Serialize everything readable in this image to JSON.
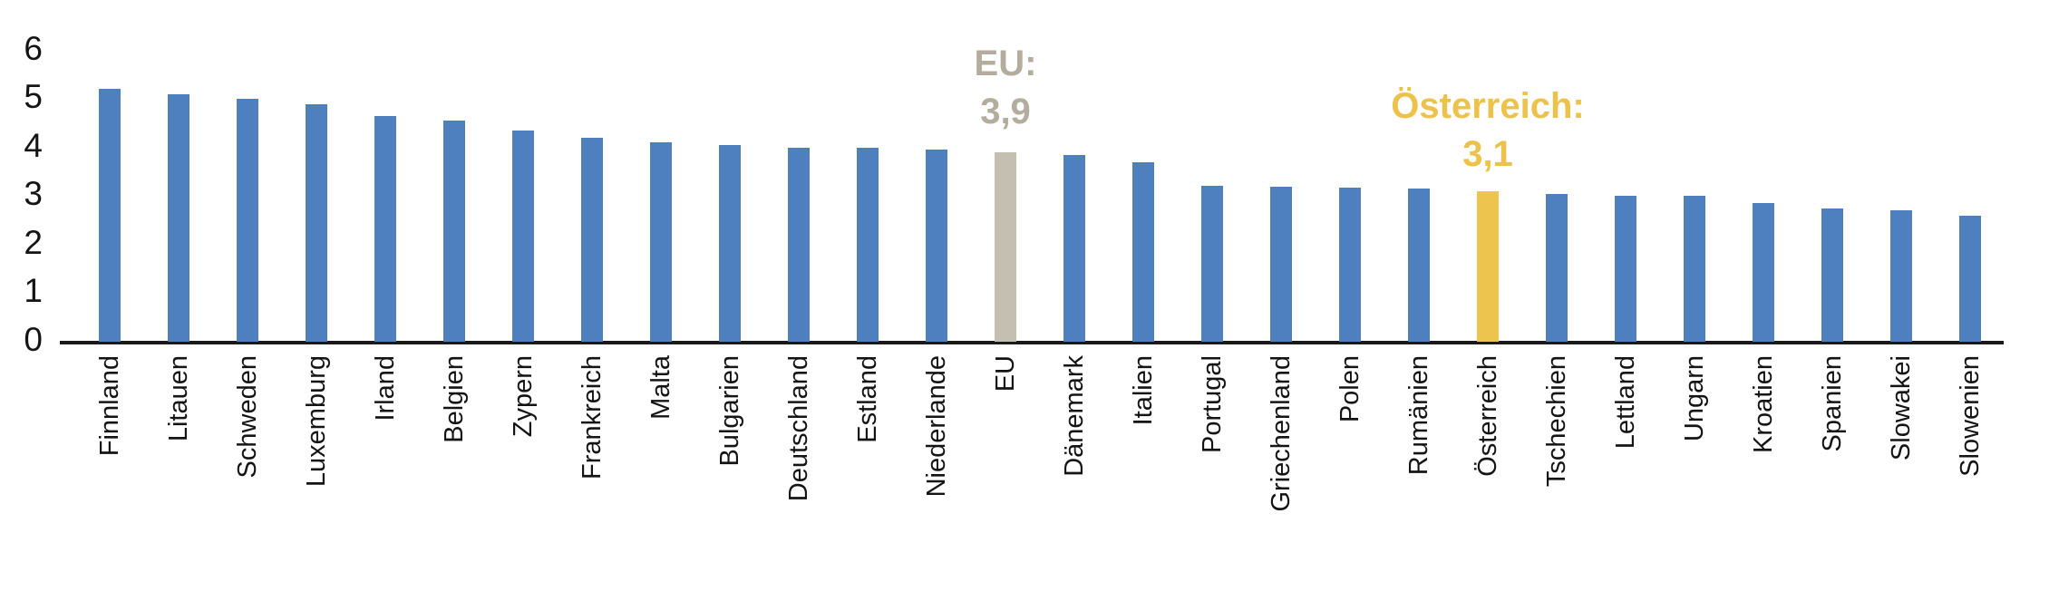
{
  "chart_data": {
    "type": "bar",
    "title": "",
    "xlabel": "",
    "ylabel": "",
    "ylim": [
      0,
      6
    ],
    "yticks": [
      0,
      1,
      2,
      3,
      4,
      5,
      6
    ],
    "grid": false,
    "legend": "none",
    "categories": [
      "Finnland",
      "Litauen",
      "Schweden",
      "Luxemburg",
      "Irland",
      "Belgien",
      "Zypern",
      "Frankreich",
      "Malta",
      "Bulgarien",
      "Deutschland",
      "Estland",
      "Niederlande",
      "EU",
      "Dänemark",
      "Italien",
      "Portugal",
      "Griechenland",
      "Polen",
      "Rumänien",
      "Österreich",
      "Tschechien",
      "Lettland",
      "Ungarn",
      "Kroatien",
      "Spanien",
      "Slowakei",
      "Slowenien"
    ],
    "values": [
      5.2,
      5.1,
      5.0,
      4.9,
      4.65,
      4.55,
      4.35,
      4.2,
      4.1,
      4.05,
      4.0,
      4.0,
      3.95,
      3.9,
      3.85,
      3.7,
      3.22,
      3.2,
      3.18,
      3.15,
      3.1,
      3.05,
      3.0,
      3.0,
      2.85,
      2.75,
      2.7,
      2.6
    ],
    "bar_color": "#4e80c0",
    "eu_bar_color": "#c5bfb1",
    "austria_bar_color": "#ecc44e",
    "axis_color": "#1a1a1a",
    "annotations": [
      {
        "id": "eu",
        "target": "EU",
        "line1": "EU:",
        "line2": "3,9",
        "text_color": "#b4ad9d"
      },
      {
        "id": "austria",
        "target": "Österreich",
        "line1": "Österreich:",
        "line2": "3,1",
        "text_color": "#ecc24a"
      }
    ]
  }
}
